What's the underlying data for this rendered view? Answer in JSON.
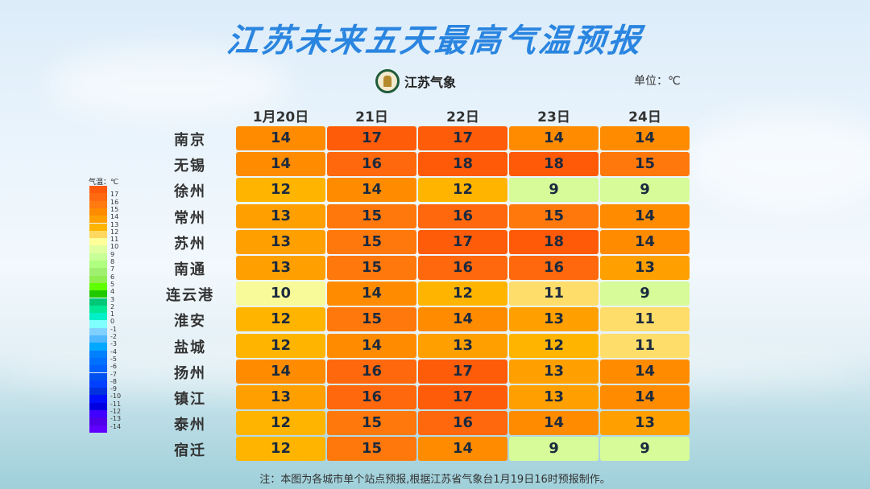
{
  "title": "江苏未来五天最高气温预报",
  "logo_text": "江苏气象",
  "unit": "单位：℃",
  "legend": {
    "title": "气温：℃",
    "labels": [
      "17",
      "16",
      "15",
      "14",
      "13",
      "12",
      "11",
      "10",
      "9",
      "8",
      "7",
      "6",
      "5",
      "4",
      "3",
      "2",
      "1",
      "0",
      "-1",
      "-2",
      "-3",
      "-4",
      "-5",
      "-6",
      "-7",
      "-8",
      "-9",
      "-10",
      "-11",
      "-12",
      "-13",
      "-14"
    ],
    "colors": [
      "#ff5a0a",
      "#ff6a10",
      "#ff7a10",
      "#ff8c00",
      "#ffa000",
      "#ffb400",
      "#ffd860",
      "#ffff99",
      "#e0ff9f",
      "#c8ff96",
      "#b0ff80",
      "#a0f070",
      "#90ee50",
      "#60ff00",
      "#20c800",
      "#00c878",
      "#00e896",
      "#00f0c8",
      "#80ffff",
      "#80d0ff",
      "#50b8ff",
      "#00a8ff",
      "#0080ff",
      "#0070ff",
      "#0060ff",
      "#0050f0",
      "#0040ff",
      "#0030e0",
      "#0010ff",
      "#0000e0",
      "#4000ff",
      "#5000e8",
      "#6000ff"
    ]
  },
  "value_colors": {
    "9": "#d6fb98",
    "10": "#f8fa9a",
    "11": "#ffdd6a",
    "12": "#ffb500",
    "13": "#ffa000",
    "14": "#ff8c00",
    "15": "#ff780c",
    "16": "#ff680c",
    "17": "#ff5c0a",
    "18": "#ff5a08"
  },
  "dates": [
    "1月20日",
    "21日",
    "22日",
    "23日",
    "24日"
  ],
  "rows": [
    {
      "city": "南京",
      "values": [
        14,
        17,
        17,
        14,
        14
      ]
    },
    {
      "city": "无锡",
      "values": [
        14,
        16,
        18,
        18,
        15
      ]
    },
    {
      "city": "徐州",
      "values": [
        12,
        14,
        12,
        9,
        9
      ]
    },
    {
      "city": "常州",
      "values": [
        13,
        15,
        16,
        15,
        14
      ]
    },
    {
      "city": "苏州",
      "values": [
        13,
        15,
        17,
        18,
        14
      ]
    },
    {
      "city": "南通",
      "values": [
        13,
        15,
        16,
        16,
        13
      ]
    },
    {
      "city": "连云港",
      "values": [
        10,
        14,
        12,
        11,
        9
      ]
    },
    {
      "city": "淮安",
      "values": [
        12,
        15,
        14,
        13,
        11
      ]
    },
    {
      "city": "盐城",
      "values": [
        12,
        14,
        13,
        12,
        11
      ]
    },
    {
      "city": "扬州",
      "values": [
        14,
        16,
        17,
        13,
        14
      ]
    },
    {
      "city": "镇江",
      "values": [
        13,
        16,
        17,
        13,
        14
      ]
    },
    {
      "city": "泰州",
      "values": [
        12,
        15,
        16,
        14,
        13
      ]
    },
    {
      "city": "宿迁",
      "values": [
        12,
        15,
        14,
        9,
        9
      ]
    }
  ],
  "note": "注：本图为各城市单个站点预报,根据江苏省气象台1月19日16时预报制作。"
}
